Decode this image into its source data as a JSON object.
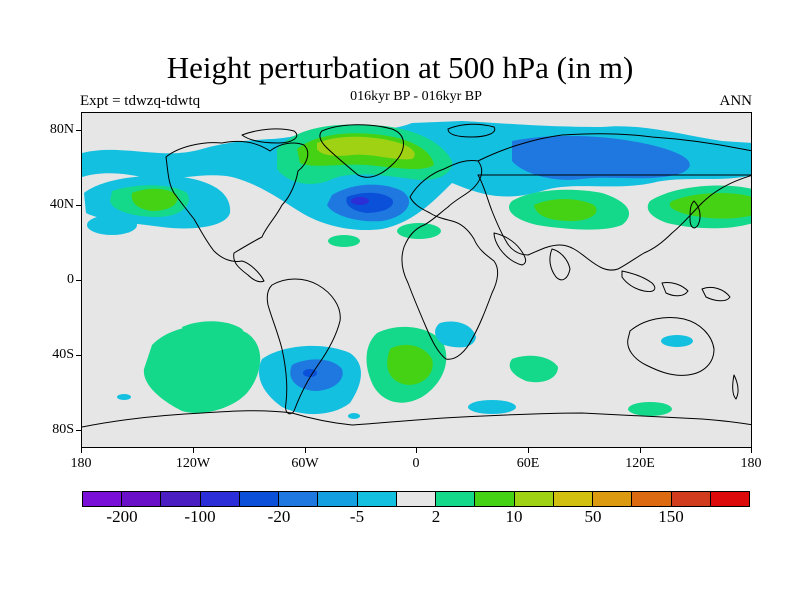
{
  "title": "Height perturbation at 500 hPa (in m)",
  "subtitle": "016kyr BP - 016kyr BP",
  "expt_label": "Expt = tdwzq-tdwtq",
  "season_label": "ANN",
  "lat_labels": [
    "80N",
    "40N",
    "0",
    "40S",
    "80S"
  ],
  "lon_labels": [
    "180",
    "120W",
    "60W",
    "0",
    "60E",
    "120E",
    "180"
  ],
  "colorbar": {
    "colors": [
      "#7a10d8",
      "#6a10c8",
      "#4a1ec0",
      "#2c2ed8",
      "#0a50d8",
      "#1e78e0",
      "#14a0e0",
      "#14c0e0",
      "#e6e6e6",
      "#14d88a",
      "#46d214",
      "#a0d214",
      "#d2c010",
      "#dc9a10",
      "#dc6a10",
      "#d23c1e",
      "#dc0a0a"
    ],
    "labels": [
      "-200",
      "-100",
      "-20",
      "-5",
      "2",
      "10",
      "50",
      "150"
    ]
  },
  "map": {
    "background_color": "#e6e6e6",
    "coastline_color": "#000000"
  }
}
